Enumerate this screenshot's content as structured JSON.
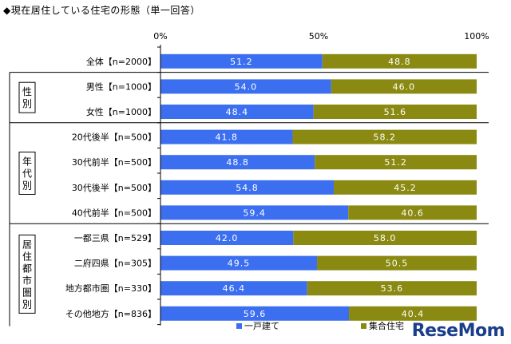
{
  "chart_data": {
    "type": "bar",
    "orientation": "horizontal-stacked-percent",
    "title": "◆現在居住している住宅の形態（単一回答）",
    "xlim": [
      0,
      100
    ],
    "x_ticks": [
      "0%",
      "50%",
      "100%"
    ],
    "groups": [
      {
        "label": "",
        "categories": [
          "全体【n=2000】"
        ]
      },
      {
        "label": "性別",
        "categories": [
          "男性【n=1000】",
          "女性【n=1000】"
        ]
      },
      {
        "label": "年代別",
        "categories": [
          "20代後半【n=500】",
          "30代前半【n=500】",
          "30代後半【n=500】",
          "40代前半【n=500】"
        ]
      },
      {
        "label": "居住都市圏別",
        "categories": [
          "一都三県【n=529】",
          "二府四県【n=305】",
          "地方都市圏【n=330】",
          "その他地方【n=836】"
        ]
      }
    ],
    "categories": [
      "全体【n=2000】",
      "男性【n=1000】",
      "女性【n=1000】",
      "20代後半【n=500】",
      "30代前半【n=500】",
      "30代後半【n=500】",
      "40代前半【n=500】",
      "一都三県【n=529】",
      "二府四県【n=305】",
      "地方都市圏【n=330】",
      "その他地方【n=836】"
    ],
    "series": [
      {
        "name": "一戸建て",
        "color": "#3c6ff0",
        "values": [
          51.2,
          54.0,
          48.4,
          41.8,
          48.8,
          54.8,
          59.4,
          42.0,
          49.5,
          46.4,
          59.6
        ],
        "labels": [
          "51.2",
          "54.0",
          "48.4",
          "41.8",
          "48.8",
          "54.8",
          "59.4",
          "42.0",
          "49.5",
          "46.4",
          "59.6"
        ]
      },
      {
        "name": "集合住宅",
        "color": "#8a8a12",
        "values": [
          48.8,
          46.0,
          51.6,
          58.2,
          51.2,
          45.2,
          40.6,
          58.0,
          50.5,
          53.6,
          40.4
        ],
        "labels": [
          "48.8",
          "46.0",
          "51.6",
          "58.2",
          "51.2",
          "45.2",
          "40.6",
          "58.0",
          "50.5",
          "53.6",
          "40.4"
        ]
      }
    ],
    "legend_position": "bottom"
  },
  "watermark": "ReseMom"
}
